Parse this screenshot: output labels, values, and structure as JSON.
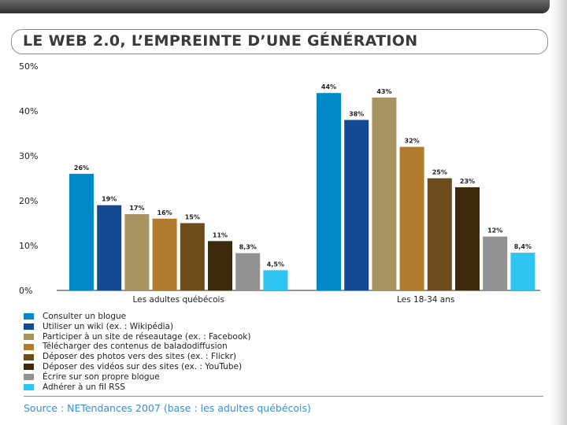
{
  "header": {
    "title": "LE WEB 2.0, L’EMPREINTE D’UNE GÉNÉRATION"
  },
  "colors": {
    "top_bar": "#444444",
    "axis_text": "#222222",
    "source_text": "#3b8fd0"
  },
  "chart_data": {
    "type": "bar",
    "title": "LE WEB 2.0, L’EMPREINTE D’UNE GÉNÉRATION",
    "xlabel": "",
    "ylabel": "",
    "ylim": [
      0,
      50
    ],
    "yticks": [
      0,
      10,
      20,
      30,
      40,
      50
    ],
    "ytick_labels": [
      "0%",
      "10%",
      "20%",
      "30%",
      "40%",
      "50%"
    ],
    "grid": false,
    "legend_position": "bottom-left",
    "categories": [
      "Les adultes québécois",
      "Les 18-34 ans"
    ],
    "series": [
      {
        "name": "Consulter un blogue",
        "color": "#0089c9",
        "values": [
          26,
          44
        ],
        "labels": [
          "26%",
          "44%"
        ]
      },
      {
        "name": "Utiliser un wiki (ex. : Wikipédia)",
        "color": "#144a93",
        "values": [
          19,
          38
        ],
        "labels": [
          "19%",
          "38%"
        ]
      },
      {
        "name": "Participer à un site de réseautage (ex. : Facebook)",
        "color": "#a89460",
        "values": [
          17,
          43
        ],
        "labels": [
          "17%",
          "43%"
        ]
      },
      {
        "name": "Télécharger des contenus de baladodiffusion",
        "color": "#b27b2e",
        "values": [
          16,
          32
        ],
        "labels": [
          "16%",
          "32%"
        ]
      },
      {
        "name": "Déposer des photos vers des sites (ex. : Flickr)",
        "color": "#6d4b1a",
        "values": [
          15,
          25
        ],
        "labels": [
          "15%",
          "25%"
        ]
      },
      {
        "name": "Déposer des vidéos sur des sites (ex. : YouTube)",
        "color": "#3c2a0c",
        "values": [
          11,
          23
        ],
        "labels": [
          "11%",
          "23%"
        ]
      },
      {
        "name": "Écrire sur son propre blogue",
        "color": "#929292",
        "values": [
          8.3,
          12
        ],
        "labels": [
          "8,3%",
          "12%"
        ]
      },
      {
        "name": "Adhérer à un fil RSS",
        "color": "#2ec6f0",
        "values": [
          4.5,
          8.4
        ],
        "labels": [
          "4,5%",
          "8,4%"
        ]
      }
    ]
  },
  "footer": {
    "source": "Source : NETendances 2007 (base : les adultes québécois)"
  }
}
